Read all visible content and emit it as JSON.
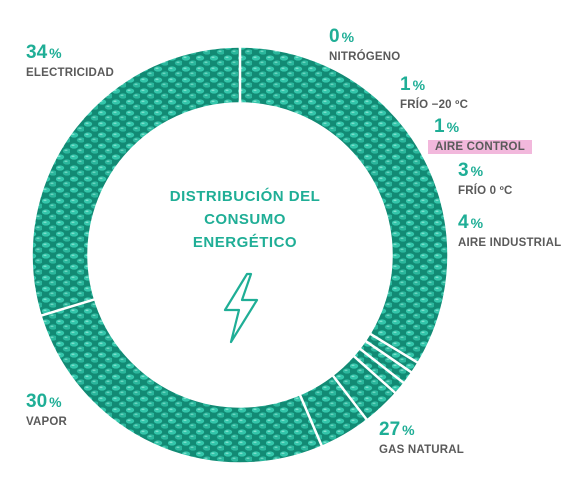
{
  "chart_data": {
    "type": "donut",
    "center_title_lines": [
      "DISTRIBUCIÓN DEL",
      "CONSUMO",
      "ENERGÉTICO"
    ],
    "center_icon": "lightning-bolt-icon",
    "unit": "%",
    "segments": [
      {
        "label": "ELECTRICIDAD",
        "value": 34
      },
      {
        "label": "NITRÓGENO",
        "value": 0
      },
      {
        "label": "FRÍO −20 ºC",
        "value": 1
      },
      {
        "label": "AIRE CONTROL",
        "value": 1,
        "highlighted": true
      },
      {
        "label": "FRÍO 0 ºC",
        "value": 3
      },
      {
        "label": "AIRE INDUSTRIAL",
        "value": 4
      },
      {
        "label": "GAS NATURAL",
        "value": 27
      },
      {
        "label": "VAPOR",
        "value": 30
      }
    ],
    "ring_color": "#2cb9a0",
    "label_value_color": "#1fae96",
    "label_text_color": "#5a5a5a",
    "highlight_color": "#f2b8dc"
  }
}
